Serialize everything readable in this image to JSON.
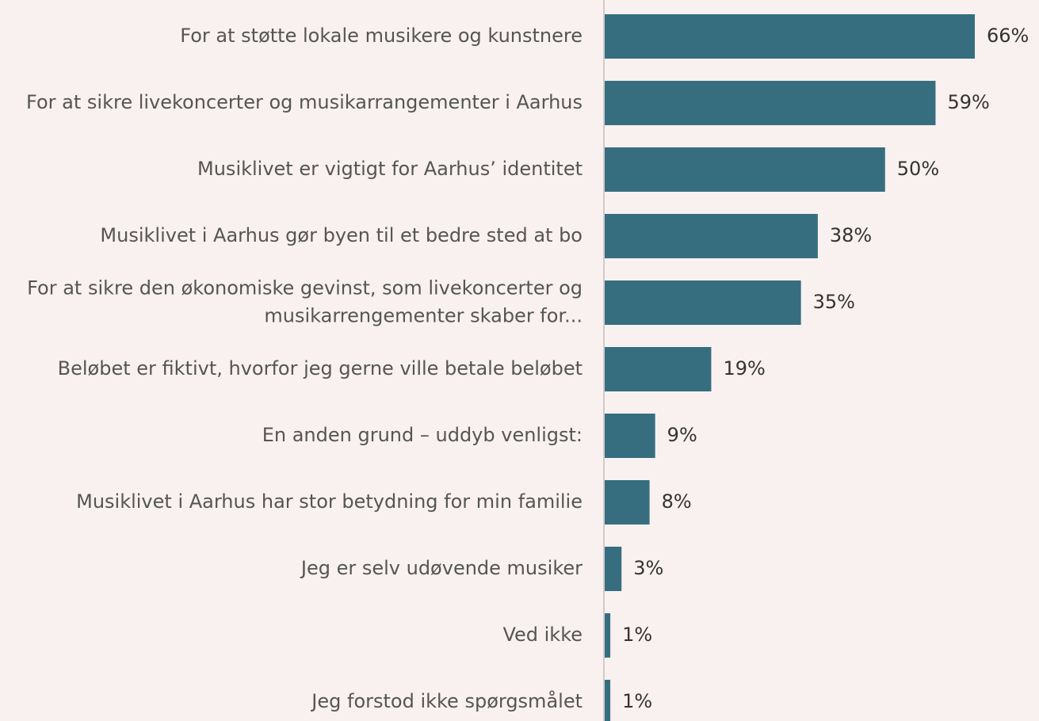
{
  "chart_data": {
    "type": "bar",
    "orientation": "horizontal",
    "color": "#376e7f",
    "categories": [
      "For at støtte lokale musikere og kunstnere",
      "For at sikre livekoncerter og musikarrangementer i Aarhus",
      "Musiklivet er vigtigt for Aarhus’ identitet",
      "Musiklivet i Aarhus gør byen til et bedre sted at bo",
      "For at sikre den økonomiske gevinst, som livekoncerter og musikarrengementer skaber for...",
      "Beløbet er fiktivt, hvorfor jeg gerne ville betale beløbet",
      "En anden grund – uddyb venligst:",
      "Musiklivet i Aarhus har stor betydning for min familie",
      "Jeg er selv udøvende musiker",
      "Ved ikke",
      "Jeg forstod ikke spørgsmålet"
    ],
    "values": [
      66,
      59,
      50,
      38,
      35,
      19,
      9,
      8,
      3,
      1,
      1
    ],
    "value_labels": [
      "66%",
      "59%",
      "50%",
      "38%",
      "35%",
      "19%",
      "9%",
      "8%",
      "3%",
      "1%",
      "1%"
    ]
  }
}
